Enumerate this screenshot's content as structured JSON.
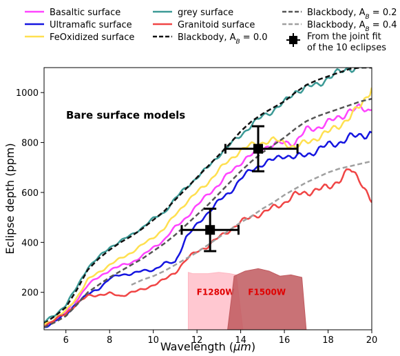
{
  "chart_data": {
    "type": "line",
    "xlabel_prefix": "Wavelength (",
    "xlabel_unit": "μm",
    "xlabel_suffix": ")",
    "ylabel": "Eclipse depth (ppm)",
    "xlim": [
      5,
      20
    ],
    "ylim": [
      50,
      1100
    ],
    "xticks": [
      6,
      8,
      10,
      12,
      14,
      16,
      18,
      20
    ],
    "yticks": [
      200,
      400,
      600,
      800,
      1000
    ],
    "annotation": "Bare surface models",
    "legend": {
      "placement": "top",
      "entries": [
        {
          "label": "Basaltic surface",
          "color": "#ff44ff",
          "style": "solid"
        },
        {
          "label": "Ultramafic surface",
          "color": "#1515e0",
          "style": "solid"
        },
        {
          "label": "FeOxidized surface",
          "color": "#ffe050",
          "style": "solid"
        },
        {
          "label": "grey surface",
          "color": "#3c9a96",
          "style": "solid"
        },
        {
          "label": " Granitoid surface",
          "color": "#f04545",
          "style": "solid"
        },
        {
          "label": "Blackbody, A",
          "sub": "B",
          "value": " = 0.0",
          "color": "#111111",
          "style": "dashed"
        },
        {
          "label": "Blackbody, A",
          "sub": "B",
          "value": " = 0.2",
          "color": "#555555",
          "style": "dashed"
        },
        {
          "label": "Blackbody, A",
          "sub": "B",
          "value": " = 0.4",
          "color": "#a0a0a0",
          "style": "dashed"
        },
        {
          "label": "From the joint fit",
          "label2": " of the 10 eclipses",
          "color": "#000000",
          "style": "marker"
        }
      ]
    },
    "series": [
      {
        "name": "grey surface",
        "color": "#3c9a96",
        "x": [
          5,
          5.5,
          6,
          6.5,
          7,
          7.5,
          8,
          8.5,
          9,
          9.5,
          10,
          10.5,
          11,
          11.5,
          12,
          12.5,
          13,
          13.5,
          14,
          14.5,
          15,
          15.5,
          16,
          16.5,
          17,
          17.5,
          18,
          18.5,
          19,
          19.5,
          20
        ],
        "y": [
          80,
          110,
          150,
          220,
          300,
          340,
          380,
          405,
          430,
          460,
          495,
          520,
          575,
          620,
          660,
          700,
          750,
          790,
          830,
          870,
          905,
          930,
          960,
          1005,
          1020,
          1030,
          1060,
          1080,
          1100,
          1100,
          1100
        ]
      },
      {
        "name": "Blackbody, A_B = 0.0",
        "color": "#111111",
        "x": [
          5,
          5.5,
          6,
          6.5,
          7,
          7.5,
          8,
          8.5,
          9,
          9.5,
          10,
          10.5,
          11,
          11.5,
          12,
          12.5,
          13,
          13.5,
          14,
          14.5,
          15,
          15.5,
          16,
          16.5,
          17,
          17.5,
          18,
          18.5,
          19,
          19.5,
          20
        ],
        "y": [
          75,
          105,
          140,
          210,
          290,
          335,
          370,
          400,
          425,
          455,
          490,
          525,
          570,
          615,
          660,
          705,
          750,
          795,
          845,
          885,
          915,
          940,
          965,
          1000,
          1030,
          1050,
          1065,
          1080,
          1095,
          1100,
          1100
        ]
      },
      {
        "name": "Basaltic surface",
        "color": "#ff44ff",
        "x": [
          5,
          5.5,
          6,
          6.5,
          7,
          7.5,
          8,
          8.5,
          9,
          9.5,
          10,
          10.5,
          11,
          11.5,
          12,
          12.5,
          13,
          13.5,
          14,
          14.5,
          15,
          15.5,
          16,
          16.5,
          17,
          17.5,
          18,
          18.5,
          19,
          19.5,
          20
        ],
        "y": [
          65,
          90,
          120,
          170,
          230,
          260,
          290,
          305,
          320,
          345,
          380,
          410,
          460,
          500,
          545,
          595,
          630,
          680,
          720,
          750,
          780,
          790,
          800,
          800,
          850,
          860,
          880,
          900,
          930,
          935,
          930
        ]
      },
      {
        "name": "FeOxidized surface",
        "color": "#ffe050",
        "x": [
          5,
          5.5,
          6,
          6.5,
          7,
          7.5,
          8,
          8.5,
          9,
          9.5,
          10,
          10.5,
          11,
          11.5,
          12,
          12.5,
          13,
          13.5,
          14,
          14.5,
          15,
          15.5,
          16,
          16.5,
          17,
          17.5,
          18,
          18.5,
          19,
          19.5,
          20
        ],
        "y": [
          70,
          95,
          125,
          180,
          250,
          280,
          310,
          335,
          360,
          390,
          420,
          455,
          510,
          560,
          600,
          640,
          690,
          730,
          770,
          790,
          800,
          810,
          800,
          780,
          800,
          820,
          840,
          870,
          900,
          950,
          1020
        ]
      },
      {
        "name": "Ultramafic surface",
        "color": "#1515e0",
        "x": [
          5,
          5.5,
          6,
          6.5,
          7,
          7.5,
          8,
          8.5,
          9,
          9.5,
          10,
          10.5,
          11,
          11.5,
          12,
          12.5,
          13,
          13.5,
          14,
          14.5,
          15,
          15.5,
          16,
          16.5,
          17,
          17.5,
          18,
          18.5,
          19,
          19.5,
          20
        ],
        "y": [
          60,
          85,
          110,
          160,
          190,
          215,
          255,
          270,
          275,
          285,
          290,
          315,
          320,
          420,
          470,
          520,
          565,
          600,
          655,
          690,
          715,
          730,
          750,
          740,
          750,
          770,
          790,
          800,
          820,
          830,
          840
        ]
      },
      {
        "name": "Granitoid surface",
        "color": "#f04545",
        "x": [
          5,
          5.5,
          6,
          6.5,
          7,
          7.5,
          8,
          8.5,
          9,
          9.5,
          10,
          10.5,
          11,
          11.5,
          12,
          12.5,
          13,
          13.5,
          14,
          14.5,
          15,
          15.5,
          16,
          16.5,
          17,
          17.5,
          18,
          18.5,
          19,
          19.5,
          20
        ],
        "y": [
          65,
          90,
          115,
          155,
          185,
          190,
          195,
          185,
          200,
          210,
          230,
          250,
          280,
          330,
          365,
          385,
          420,
          450,
          480,
          505,
          515,
          540,
          560,
          590,
          600,
          610,
          620,
          650,
          690,
          650,
          560
        ]
      },
      {
        "name": "Blackbody, A_B = 0.2",
        "color": "#555555",
        "x": [
          5,
          5.5,
          6,
          6.5,
          7,
          7.5,
          8,
          8.5,
          9,
          9.5,
          10,
          10.5,
          11,
          11.5,
          12,
          12.5,
          13,
          13.5,
          14,
          14.5,
          15,
          15.5,
          16,
          16.5,
          17,
          17.5,
          18,
          18.5,
          19,
          19.5,
          20
        ],
        "y": [
          60,
          80,
          105,
          150,
          200,
          230,
          260,
          285,
          310,
          335,
          365,
          395,
          430,
          470,
          510,
          550,
          595,
          640,
          685,
          725,
          760,
          790,
          820,
          855,
          885,
          905,
          920,
          935,
          950,
          965,
          975
        ]
      },
      {
        "name": "Blackbody, A_B = 0.4",
        "color": "#a0a0a0",
        "x": [
          9,
          9.5,
          10,
          10.5,
          11,
          11.5,
          12,
          12.5,
          13,
          13.5,
          14,
          14.5,
          15,
          15.5,
          16,
          16.5,
          17,
          17.5,
          18,
          18.5,
          19,
          19.5,
          20
        ],
        "y": [
          230,
          250,
          265,
          285,
          310,
          335,
          360,
          390,
          420,
          450,
          480,
          505,
          535,
          560,
          590,
          615,
          640,
          660,
          680,
          695,
          705,
          715,
          725
        ]
      }
    ],
    "measurements": [
      {
        "x": 12.6,
        "y": 450,
        "xerr": [
          1.3,
          1.3
        ],
        "yerr": [
          85,
          85
        ]
      },
      {
        "x": 14.8,
        "y": 775,
        "xerr": [
          1.5,
          1.8
        ],
        "yerr": [
          90,
          90
        ]
      }
    ],
    "filters": [
      {
        "name": "F1280W",
        "x": [
          11.6,
          11.8,
          12.0,
          12.5,
          13.0,
          13.5,
          13.8,
          14.1
        ],
        "y": [
          280,
          275,
          275,
          275,
          280,
          275,
          270,
          50
        ],
        "color": "#ffb6c1"
      },
      {
        "name": "F1500W",
        "x": [
          13.4,
          13.7,
          14.2,
          14.8,
          15.3,
          15.8,
          16.3,
          16.8,
          17.0
        ],
        "y": [
          50,
          265,
          285,
          295,
          285,
          265,
          270,
          260,
          50
        ],
        "color": "#c0595e"
      }
    ]
  }
}
